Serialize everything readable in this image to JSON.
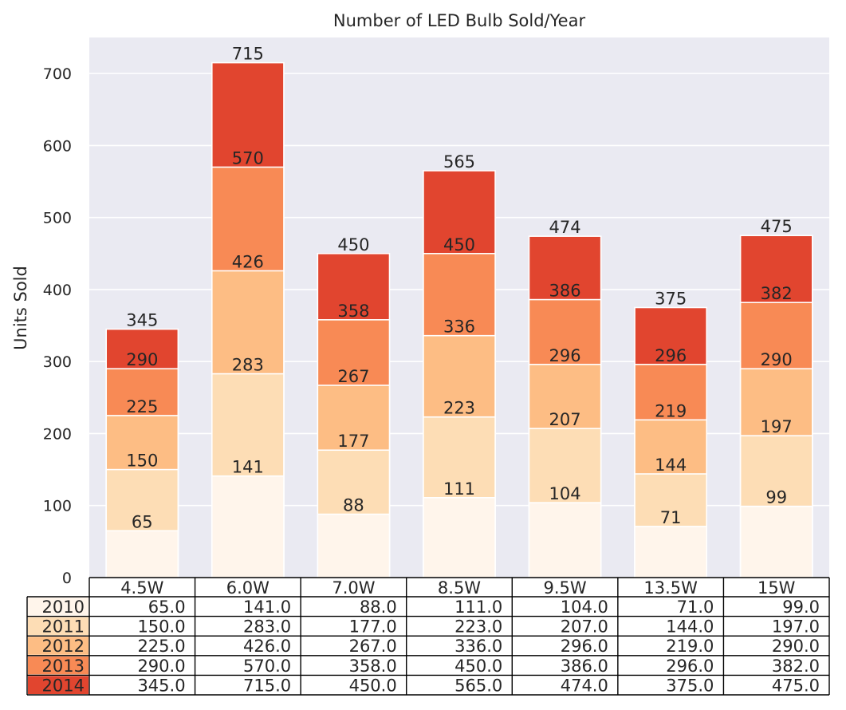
{
  "chart_data": {
    "type": "bar",
    "stacked": false,
    "title": "Number of LED Bulb Sold/Year",
    "xlabel": "",
    "ylabel": "Units Sold",
    "ylim": [
      0,
      750
    ],
    "yticks": [
      0,
      100,
      200,
      300,
      400,
      500,
      600,
      700
    ],
    "grid": true,
    "categories": [
      "4.5W",
      "6.0W",
      "7.0W",
      "8.5W",
      "9.5W",
      "13.5W",
      "15W"
    ],
    "series": [
      {
        "name": "2010",
        "color": "#fff5eb",
        "values": [
          65,
          141,
          88,
          111,
          104,
          71,
          99
        ]
      },
      {
        "name": "2011",
        "color": "#fdddb5",
        "values": [
          150,
          283,
          177,
          223,
          207,
          144,
          197
        ]
      },
      {
        "name": "2012",
        "color": "#fdbd84",
        "values": [
          225,
          426,
          267,
          336,
          296,
          219,
          290
        ]
      },
      {
        "name": "2013",
        "color": "#f88a55",
        "values": [
          290,
          570,
          358,
          450,
          386,
          296,
          382
        ]
      },
      {
        "name": "2014",
        "color": "#e1452f",
        "values": [
          345,
          715,
          450,
          565,
          474,
          375,
          475
        ]
      }
    ],
    "table": {
      "rows": [
        {
          "label": "2010",
          "cells": [
            "65.0",
            "141.0",
            "88.0",
            "111.0",
            "104.0",
            "71.0",
            "99.0"
          ]
        },
        {
          "label": "2011",
          "cells": [
            "150.0",
            "283.0",
            "177.0",
            "223.0",
            "207.0",
            "144.0",
            "197.0"
          ]
        },
        {
          "label": "2012",
          "cells": [
            "225.0",
            "426.0",
            "267.0",
            "336.0",
            "296.0",
            "219.0",
            "290.0"
          ]
        },
        {
          "label": "2013",
          "cells": [
            "290.0",
            "570.0",
            "358.0",
            "450.0",
            "386.0",
            "296.0",
            "382.0"
          ]
        },
        {
          "label": "2014",
          "cells": [
            "345.0",
            "715.0",
            "450.0",
            "565.0",
            "474.0",
            "375.0",
            "475.0"
          ]
        }
      ]
    }
  }
}
